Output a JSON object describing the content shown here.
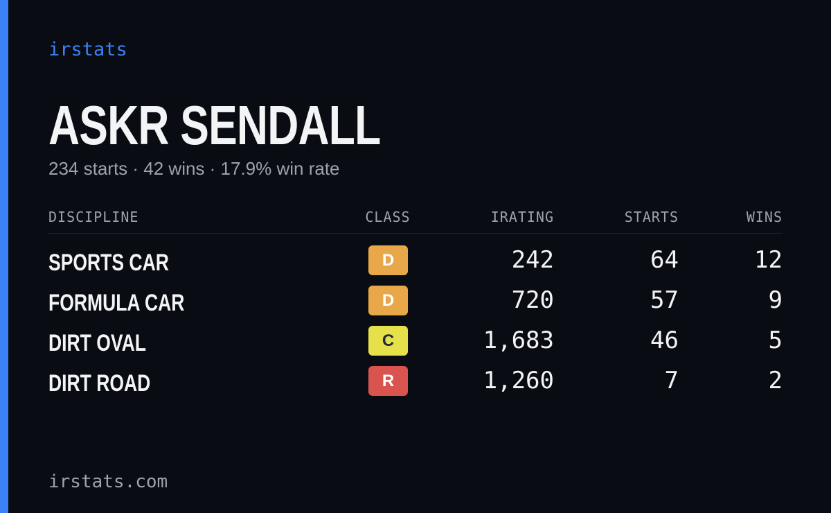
{
  "brand": "irstats",
  "driver": {
    "name": "ASKR SENDALL",
    "summary": "234 starts · 42 wins · 17.9% win rate"
  },
  "table": {
    "headers": [
      "DISCIPLINE",
      "CLASS",
      "IRATING",
      "STARTS",
      "WINS"
    ],
    "rows": [
      {
        "discipline": "SPORTS CAR",
        "class": "D",
        "class_color": "#e8a84a",
        "class_text_color": "#ffffff",
        "irating": "242",
        "starts": "64",
        "wins": "12"
      },
      {
        "discipline": "FORMULA CAR",
        "class": "D",
        "class_color": "#e8a84a",
        "class_text_color": "#ffffff",
        "irating": "720",
        "starts": "57",
        "wins": "9"
      },
      {
        "discipline": "DIRT OVAL",
        "class": "C",
        "class_color": "#e6e04a",
        "class_text_color": "#1f2937",
        "irating": "1,683",
        "starts": "46",
        "wins": "5"
      },
      {
        "discipline": "DIRT ROAD",
        "class": "R",
        "class_color": "#d9534f",
        "class_text_color": "#ffffff",
        "irating": "1,260",
        "starts": "7",
        "wins": "2"
      }
    ]
  },
  "footer": "irstats.com"
}
